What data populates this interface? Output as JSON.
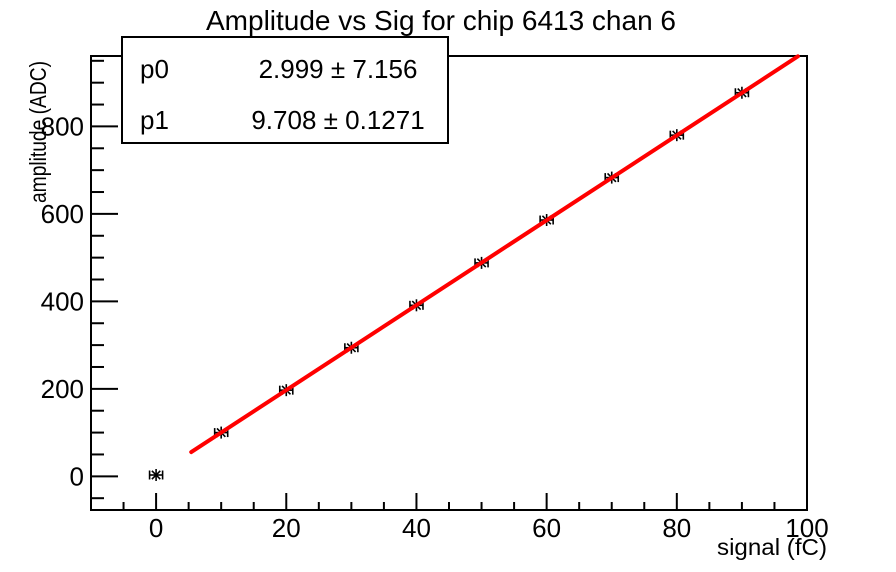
{
  "title": "Amplitude vs Sig for chip 6413 chan 6",
  "colors": {
    "background": "#ffffff",
    "axis": "#000000",
    "text": "#000000",
    "fit_line": "#ff0000",
    "stats_box_fill": "#ffffff",
    "stats_box_border": "#000000"
  },
  "stats_box": {
    "rows": [
      {
        "param": "p0",
        "value": "2.999 ± 7.156"
      },
      {
        "param": "p1",
        "value": "9.708 ± 0.1271"
      }
    ]
  },
  "chart_data": {
    "type": "scatter",
    "title": "Amplitude vs Sig for chip 6413 chan 6",
    "xlabel": "signal (fC)",
    "ylabel": "amplitude (ADC)",
    "x": [
      0,
      10,
      20,
      30,
      40,
      50,
      60,
      70,
      80,
      90
    ],
    "y": [
      3,
      100,
      197,
      294,
      391,
      488,
      586,
      683,
      780,
      877
    ],
    "x_err": 1,
    "marker": "asterisk",
    "marker_color": "#000000",
    "grid": false,
    "legend": "none",
    "xlim": [
      -10,
      100
    ],
    "ylim": [
      -77,
      961
    ],
    "x_ticks_major": [
      0,
      20,
      40,
      60,
      80,
      100
    ],
    "x_tick_labels": [
      "0",
      "20",
      "40",
      "60",
      "80",
      "100"
    ],
    "x_minor_step": 5,
    "y_ticks_major": [
      0,
      200,
      400,
      600,
      800
    ],
    "y_tick_labels": [
      "0",
      "200",
      "400",
      "600",
      "800"
    ],
    "y_minor_step": 50,
    "fit": {
      "type": "linear",
      "p0": 2.999,
      "p0_err": 7.156,
      "p1": 9.708,
      "p1_err": 0.1271,
      "draw_range_x": [
        5.4,
        98.6
      ],
      "color": "#ff0000"
    }
  }
}
